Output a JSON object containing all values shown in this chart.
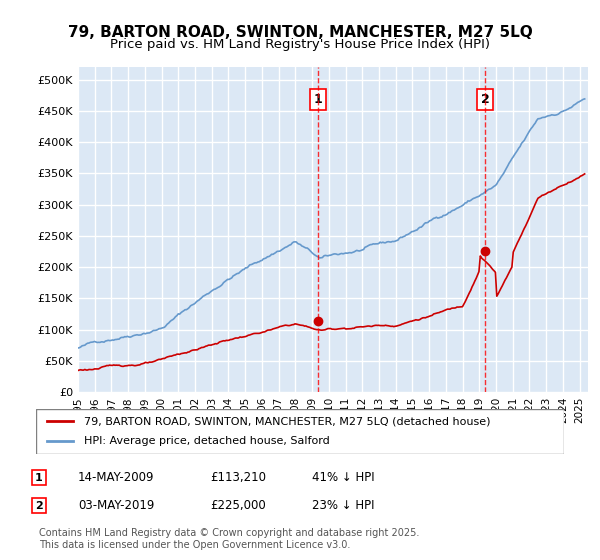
{
  "title": "79, BARTON ROAD, SWINTON, MANCHESTER, M27 5LQ",
  "subtitle": "Price paid vs. HM Land Registry's House Price Index (HPI)",
  "ylabel_values": [
    "£0",
    "£50K",
    "£100K",
    "£150K",
    "£200K",
    "£250K",
    "£300K",
    "£350K",
    "£400K",
    "£450K",
    "£500K"
  ],
  "yticks": [
    0,
    50000,
    100000,
    150000,
    200000,
    250000,
    300000,
    350000,
    400000,
    450000,
    500000
  ],
  "ylim": [
    0,
    520000
  ],
  "xlim_start": 1995.0,
  "xlim_end": 2025.5,
  "background_color": "#dce8f5",
  "plot_bg_color": "#dce8f5",
  "grid_color": "#ffffff",
  "marker1_x": 2009.37,
  "marker1_y": 113210,
  "marker2_x": 2019.34,
  "marker2_y": 225000,
  "marker1_label": "1",
  "marker2_label": "2",
  "legend_entries": [
    "79, BARTON ROAD, SWINTON, MANCHESTER, M27 5LQ (detached house)",
    "HPI: Average price, detached house, Salford"
  ],
  "table_rows": [
    [
      "1",
      "14-MAY-2009",
      "£113,210",
      "41% ↓ HPI"
    ],
    [
      "2",
      "03-MAY-2019",
      "£225,000",
      "23% ↓ HPI"
    ]
  ],
  "footnote": "Contains HM Land Registry data © Crown copyright and database right 2025.\nThis data is licensed under the Open Government Licence v3.0.",
  "line_red_color": "#cc0000",
  "line_blue_color": "#6699cc",
  "title_fontsize": 11,
  "subtitle_fontsize": 9.5
}
